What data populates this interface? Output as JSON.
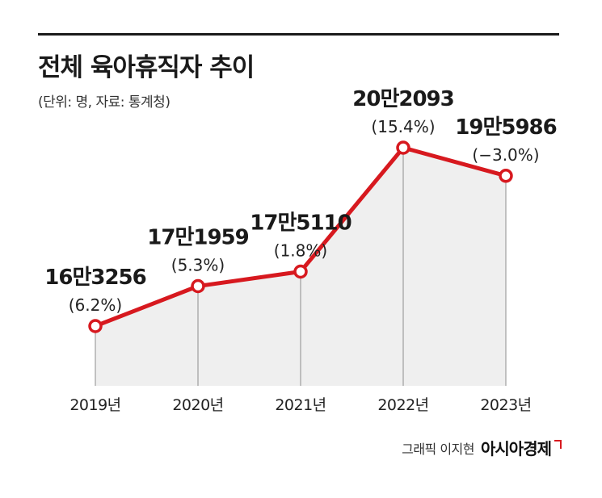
{
  "header": {
    "title": "전체 육아휴직자 추이",
    "subtitle": "(단위: 명, 자료: 통계청)"
  },
  "credit": {
    "byline": "그래픽 이지현",
    "brand": "아시아경제"
  },
  "colors": {
    "line": "#d7191f",
    "area": "#efefef",
    "text": "#1a1a1a"
  },
  "chart_data": {
    "type": "area",
    "categories": [
      "2019년",
      "2020년",
      "2021년",
      "2022년",
      "2023년"
    ],
    "values": [
      163256,
      171959,
      175110,
      202093,
      195986
    ],
    "value_labels": [
      "16만3256",
      "17만1959",
      "17만5110",
      "20만2093",
      "19만5986"
    ],
    "change_labels": [
      "(6.2%)",
      "(5.3%)",
      "(1.8%)",
      "(15.4%)",
      "(−3.0%)"
    ],
    "title": "전체 육아휴직자 추이",
    "xlabel": "",
    "ylabel": "",
    "grid": false,
    "legend": "none"
  }
}
